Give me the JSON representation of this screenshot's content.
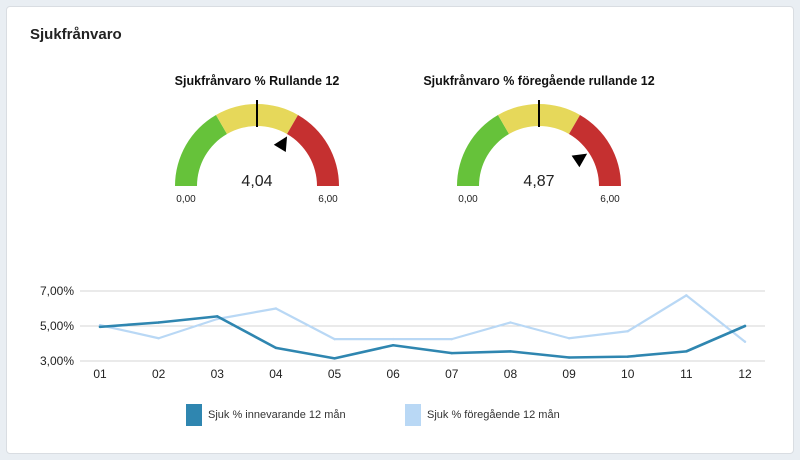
{
  "panel": {
    "title": "Sjukfrånvaro"
  },
  "chart_data": [
    {
      "type": "gauge",
      "title": "Sjukfrånvaro % Rullande 12",
      "value": 4.04,
      "value_label": "4,04",
      "min": 0,
      "max": 6,
      "min_label": "0,00",
      "max_label": "6,00",
      "target": 3.0,
      "bands": [
        {
          "from": 0,
          "to": 2,
          "color": "#66c23a"
        },
        {
          "from": 2,
          "to": 4,
          "color": "#e6d85a"
        },
        {
          "from": 4,
          "to": 6,
          "color": "#c53030"
        }
      ]
    },
    {
      "type": "gauge",
      "title": "Sjukfrånvaro % föregående rullande 12",
      "value": 4.87,
      "value_label": "4,87",
      "min": 0,
      "max": 6,
      "min_label": "0,00",
      "max_label": "6,00",
      "target": 3.0,
      "bands": [
        {
          "from": 0,
          "to": 2,
          "color": "#66c23a"
        },
        {
          "from": 2,
          "to": 4,
          "color": "#e6d85a"
        },
        {
          "from": 4,
          "to": 6,
          "color": "#c53030"
        }
      ]
    },
    {
      "type": "line",
      "categories": [
        "01",
        "02",
        "03",
        "04",
        "05",
        "06",
        "07",
        "08",
        "09",
        "10",
        "11",
        "12"
      ],
      "ylim": [
        3,
        7
      ],
      "yticks": [
        3,
        5,
        7
      ],
      "ytick_labels": [
        "3,00%",
        "5,00%",
        "7,00%"
      ],
      "grid": true,
      "legend": "bottom",
      "series": [
        {
          "name": "Sjuk % innevarande 12 mån",
          "color": "#2f86b0",
          "values": [
            4.95,
            5.2,
            5.55,
            3.75,
            3.15,
            3.9,
            3.45,
            3.55,
            3.2,
            3.25,
            3.55,
            5.0
          ]
        },
        {
          "name": "Sjuk % föregående 12 mån",
          "color": "#b9d8f5",
          "values": [
            5.05,
            4.3,
            5.4,
            6.0,
            4.25,
            4.25,
            4.25,
            5.2,
            4.3,
            4.7,
            6.75,
            4.1
          ]
        }
      ]
    }
  ]
}
